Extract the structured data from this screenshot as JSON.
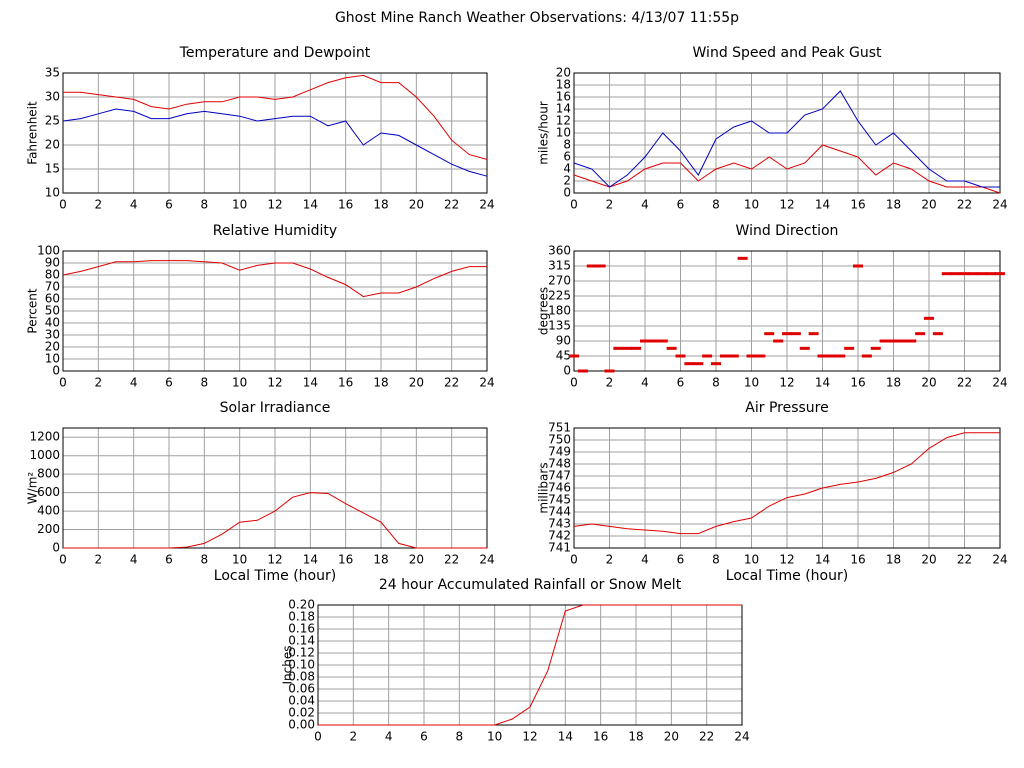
{
  "title": "Ghost Mine Ranch Weather Observations: 4/13/07 11:55p",
  "chart_data": [
    {
      "type": "line",
      "title": "Temperature and Dewpoint",
      "ylabel": "Fahrenheit",
      "grid": true,
      "xlim": [
        0,
        24
      ],
      "xticks": [
        0,
        2,
        4,
        6,
        8,
        10,
        12,
        14,
        16,
        18,
        20,
        22,
        24
      ],
      "ylim": [
        10,
        35
      ],
      "yticks": [
        10,
        15,
        20,
        25,
        30,
        35
      ],
      "x": [
        0,
        1,
        2,
        3,
        4,
        5,
        6,
        7,
        8,
        9,
        10,
        11,
        12,
        13,
        14,
        15,
        16,
        17,
        18,
        19,
        20,
        21,
        22,
        23,
        24
      ],
      "series": [
        {
          "name": "Temperature",
          "color": "#e00000",
          "values": [
            31,
            31,
            30.5,
            30,
            29.5,
            28,
            27.5,
            28.5,
            29,
            29,
            30,
            30,
            29.5,
            30,
            31.5,
            33,
            34,
            34.5,
            33,
            33,
            30,
            26,
            21,
            18,
            17
          ]
        },
        {
          "name": "Dewpoint",
          "color": "#0000c0",
          "values": [
            25,
            25.5,
            26.5,
            27.5,
            27,
            25.5,
            25.5,
            26.5,
            27,
            26.5,
            26,
            25,
            25.5,
            26,
            26,
            24,
            25,
            20,
            22.5,
            22,
            20,
            18,
            16,
            14.5,
            13.5
          ]
        }
      ]
    },
    {
      "type": "line",
      "title": "Wind Speed and Peak Gust",
      "ylabel": "miles/hour",
      "grid": true,
      "xlim": [
        0,
        24
      ],
      "xticks": [
        0,
        2,
        4,
        6,
        8,
        10,
        12,
        14,
        16,
        18,
        20,
        22,
        24
      ],
      "ylim": [
        0,
        20
      ],
      "yticks": [
        0,
        2,
        4,
        6,
        8,
        10,
        12,
        14,
        16,
        18,
        20
      ],
      "x": [
        0,
        1,
        2,
        3,
        4,
        5,
        6,
        7,
        8,
        9,
        10,
        11,
        12,
        13,
        14,
        15,
        16,
        17,
        18,
        19,
        20,
        21,
        22,
        23,
        24
      ],
      "series": [
        {
          "name": "Wind Speed",
          "color": "#e00000",
          "values": [
            3,
            2,
            1,
            2,
            4,
            5,
            5,
            2,
            4,
            5,
            4,
            6,
            4,
            5,
            8,
            7,
            6,
            3,
            5,
            4,
            2,
            1,
            1,
            1,
            0
          ]
        },
        {
          "name": "Peak Gust",
          "color": "#0000c0",
          "values": [
            5,
            4,
            1,
            3,
            6,
            10,
            7,
            3,
            9,
            11,
            12,
            10,
            10,
            13,
            14,
            17,
            12,
            8,
            10,
            7,
            4,
            2,
            2,
            1,
            1
          ]
        }
      ]
    },
    {
      "type": "line",
      "title": "Relative Humidity",
      "ylabel": "Percent",
      "grid": true,
      "xlim": [
        0,
        24
      ],
      "xticks": [
        0,
        2,
        4,
        6,
        8,
        10,
        12,
        14,
        16,
        18,
        20,
        22,
        24
      ],
      "ylim": [
        0,
        100
      ],
      "yticks": [
        0,
        10,
        20,
        30,
        40,
        50,
        60,
        70,
        80,
        90,
        100
      ],
      "x": [
        0,
        1,
        2,
        3,
        4,
        5,
        6,
        7,
        8,
        9,
        10,
        11,
        12,
        13,
        14,
        15,
        16,
        17,
        18,
        19,
        20,
        21,
        22,
        23,
        24
      ],
      "series": [
        {
          "name": "Relative Humidity",
          "color": "#e00000",
          "values": [
            80,
            83,
            87,
            91,
            91,
            92,
            92,
            92,
            91,
            90,
            84,
            88,
            90,
            90,
            85,
            78,
            72,
            62,
            65,
            65,
            70,
            77,
            83,
            87,
            87
          ]
        }
      ]
    },
    {
      "type": "scatter",
      "title": "Wind Direction",
      "ylabel": "degrees",
      "grid": true,
      "xlim": [
        0,
        24
      ],
      "xticks": [
        0,
        2,
        4,
        6,
        8,
        10,
        12,
        14,
        16,
        18,
        20,
        22,
        24
      ],
      "ylim": [
        0,
        360
      ],
      "yticks": [
        0,
        45,
        90,
        135,
        180,
        225,
        270,
        315,
        360
      ],
      "x": [
        0,
        0.5,
        1,
        1.5,
        2,
        2.5,
        3,
        3.5,
        4,
        4.5,
        5,
        5.5,
        6,
        6.5,
        7,
        7.5,
        8,
        8.5,
        9,
        9.5,
        10,
        10.5,
        11,
        11.5,
        12,
        12.5,
        13,
        13.5,
        14,
        14.5,
        15,
        15.5,
        16,
        16.5,
        17,
        17.5,
        18,
        18.5,
        19,
        19.5,
        20,
        20.5,
        21,
        21.5,
        22,
        22.5,
        23,
        23.5,
        24
      ],
      "series": [
        {
          "name": "Wind Direction",
          "color": "#e00000",
          "values": [
            45,
            0,
            315,
            315,
            0,
            68,
            68,
            68,
            90,
            90,
            90,
            68,
            45,
            22,
            22,
            45,
            22,
            45,
            45,
            338,
            45,
            45,
            112,
            90,
            112,
            112,
            68,
            112,
            45,
            45,
            45,
            68,
            315,
            45,
            68,
            90,
            90,
            90,
            90,
            112,
            158,
            112,
            292,
            292,
            292,
            292,
            292,
            292,
            292
          ]
        }
      ]
    },
    {
      "type": "line",
      "title": "Solar Irradiance",
      "ylabel": "W/m²",
      "xlabel": "Local Time (hour)",
      "grid": true,
      "xlim": [
        0,
        24
      ],
      "xticks": [
        0,
        2,
        4,
        6,
        8,
        10,
        12,
        14,
        16,
        18,
        20,
        22,
        24
      ],
      "ylim": [
        0,
        1300
      ],
      "yticks": [
        0,
        200,
        400,
        600,
        800,
        1000,
        1200
      ],
      "x": [
        0,
        1,
        2,
        3,
        4,
        5,
        6,
        7,
        8,
        9,
        10,
        11,
        12,
        13,
        14,
        15,
        16,
        17,
        18,
        19,
        20,
        21,
        22,
        23,
        24
      ],
      "series": [
        {
          "name": "Solar Irradiance",
          "color": "#e00000",
          "values": [
            0,
            0,
            0,
            0,
            0,
            0,
            0,
            10,
            50,
            150,
            280,
            300,
            400,
            550,
            600,
            590,
            480,
            380,
            280,
            50,
            0,
            0,
            0,
            0,
            0
          ]
        }
      ]
    },
    {
      "type": "line",
      "title": "Air Pressure",
      "ylabel": "millibars",
      "xlabel": "Local Time (hour)",
      "grid": true,
      "xlim": [
        0,
        24
      ],
      "xticks": [
        0,
        2,
        4,
        6,
        8,
        10,
        12,
        14,
        16,
        18,
        20,
        22,
        24
      ],
      "ylim": [
        741,
        751
      ],
      "yticks": [
        741,
        742,
        743,
        744,
        745,
        746,
        747,
        748,
        749,
        750,
        751
      ],
      "x": [
        0,
        1,
        2,
        3,
        4,
        5,
        6,
        7,
        8,
        9,
        10,
        11,
        12,
        13,
        14,
        15,
        16,
        17,
        18,
        19,
        20,
        21,
        22,
        23,
        24
      ],
      "series": [
        {
          "name": "Air Pressure",
          "color": "#e00000",
          "values": [
            742.8,
            743,
            742.8,
            742.6,
            742.5,
            742.4,
            742.2,
            742.2,
            742.8,
            743.2,
            743.5,
            744.5,
            745.2,
            745.5,
            746,
            746.3,
            746.5,
            746.8,
            747.3,
            748,
            749.3,
            750.2,
            750.6,
            750.6,
            750.6
          ]
        }
      ]
    },
    {
      "type": "line",
      "title": "24 hour Accumulated Rainfall or Snow Melt",
      "ylabel": "Inches",
      "grid": true,
      "xlim": [
        0,
        24
      ],
      "xticks": [
        0,
        2,
        4,
        6,
        8,
        10,
        12,
        14,
        16,
        18,
        20,
        22,
        24
      ],
      "ylim": [
        0,
        0.2
      ],
      "yticks": [
        {
          "value": 0,
          "label": "0.00"
        },
        {
          "value": 0.02,
          "label": "0.02"
        },
        {
          "value": 0.04,
          "label": "0.04"
        },
        {
          "value": 0.06,
          "label": "0.06"
        },
        {
          "value": 0.08,
          "label": "0.08"
        },
        {
          "value": 0.1,
          "label": "0.10"
        },
        {
          "value": 0.12,
          "label": "0.12"
        },
        {
          "value": 0.14,
          "label": "0.14"
        },
        {
          "value": 0.16,
          "label": "0.16"
        },
        {
          "value": 0.18,
          "label": "0.18"
        },
        {
          "value": 0.2,
          "label": "0.20"
        }
      ],
      "x": [
        0,
        1,
        2,
        3,
        4,
        5,
        6,
        7,
        8,
        9,
        10,
        11,
        12,
        13,
        14,
        15,
        16,
        17,
        18,
        19,
        20,
        21,
        22,
        23,
        24
      ],
      "series": [
        {
          "name": "Rainfall",
          "color": "#e00000",
          "values": [
            0,
            0,
            0,
            0,
            0,
            0,
            0,
            0,
            0,
            0,
            0,
            0.01,
            0.03,
            0.09,
            0.19,
            0.2,
            0.2,
            0.2,
            0.2,
            0.2,
            0.2,
            0.2,
            0.2,
            0.2,
            0.2
          ]
        }
      ]
    }
  ]
}
